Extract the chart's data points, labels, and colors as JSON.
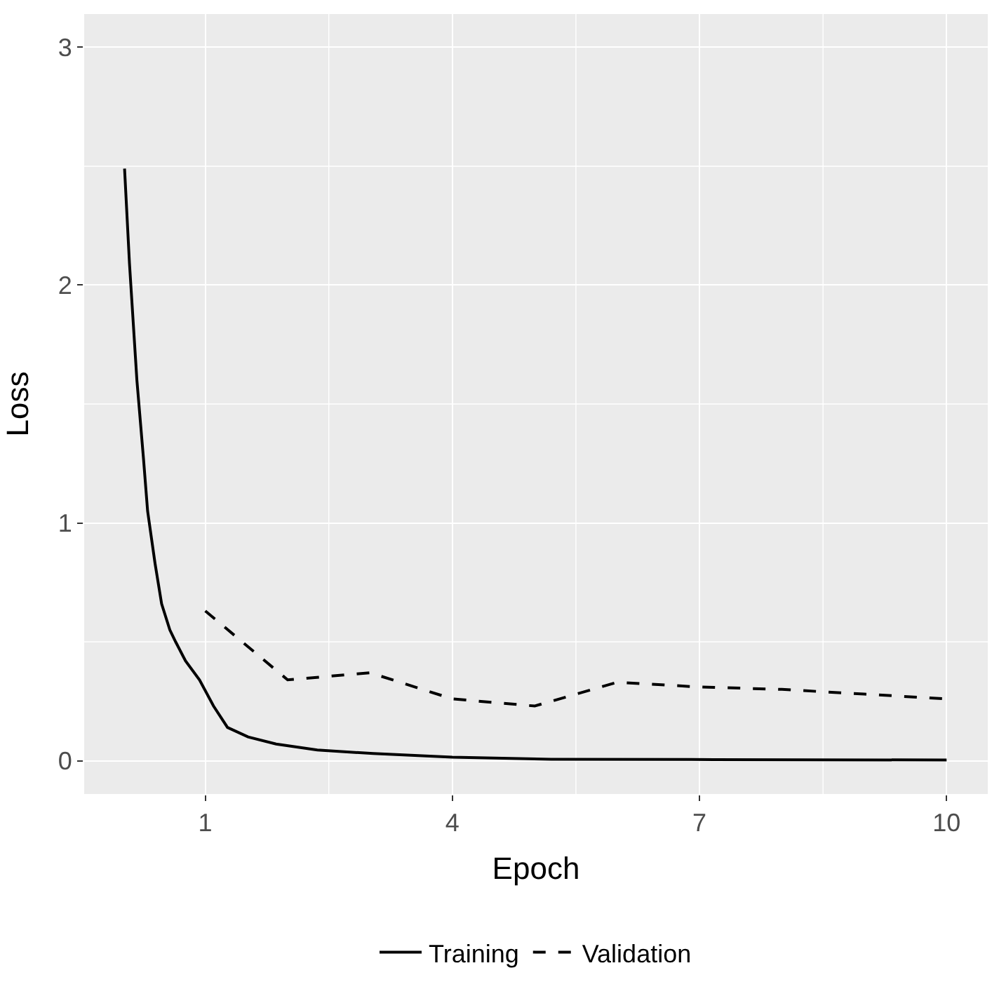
{
  "chart_data": {
    "type": "line",
    "xlabel": "Epoch",
    "ylabel": "Loss",
    "xlim": [
      -0.47,
      10.5
    ],
    "ylim": [
      -0.14,
      3.14
    ],
    "xticks": [
      1,
      4,
      7,
      10
    ],
    "yticks": [
      0,
      1,
      2,
      3
    ],
    "grid": true,
    "legend": "bottom",
    "marker": "none",
    "series": [
      {
        "name": "Training",
        "color": "#000000",
        "line_style": "solid",
        "x": [
          0.02,
          0.08,
          0.17,
          0.25,
          0.3,
          0.39,
          0.47,
          0.57,
          0.64,
          0.76,
          0.93,
          1.1,
          1.27,
          1.52,
          1.86,
          2.36,
          3.04,
          4.0,
          5.2,
          6.9,
          10
        ],
        "values": [
          2.49,
          2.09,
          1.6,
          1.27,
          1.05,
          0.83,
          0.66,
          0.55,
          0.5,
          0.42,
          0.34,
          0.23,
          0.14,
          0.1,
          0.07,
          0.045,
          0.03,
          0.015,
          0.006,
          0.005,
          0.003
        ]
      },
      {
        "name": "Validation",
        "color": "#000000",
        "line_style": "dashed",
        "x": [
          1,
          2,
          3,
          4,
          5,
          6,
          7,
          8,
          9,
          10
        ],
        "values": [
          0.63,
          0.34,
          0.37,
          0.26,
          0.23,
          0.33,
          0.31,
          0.3,
          0.28,
          0.26
        ]
      }
    ]
  }
}
